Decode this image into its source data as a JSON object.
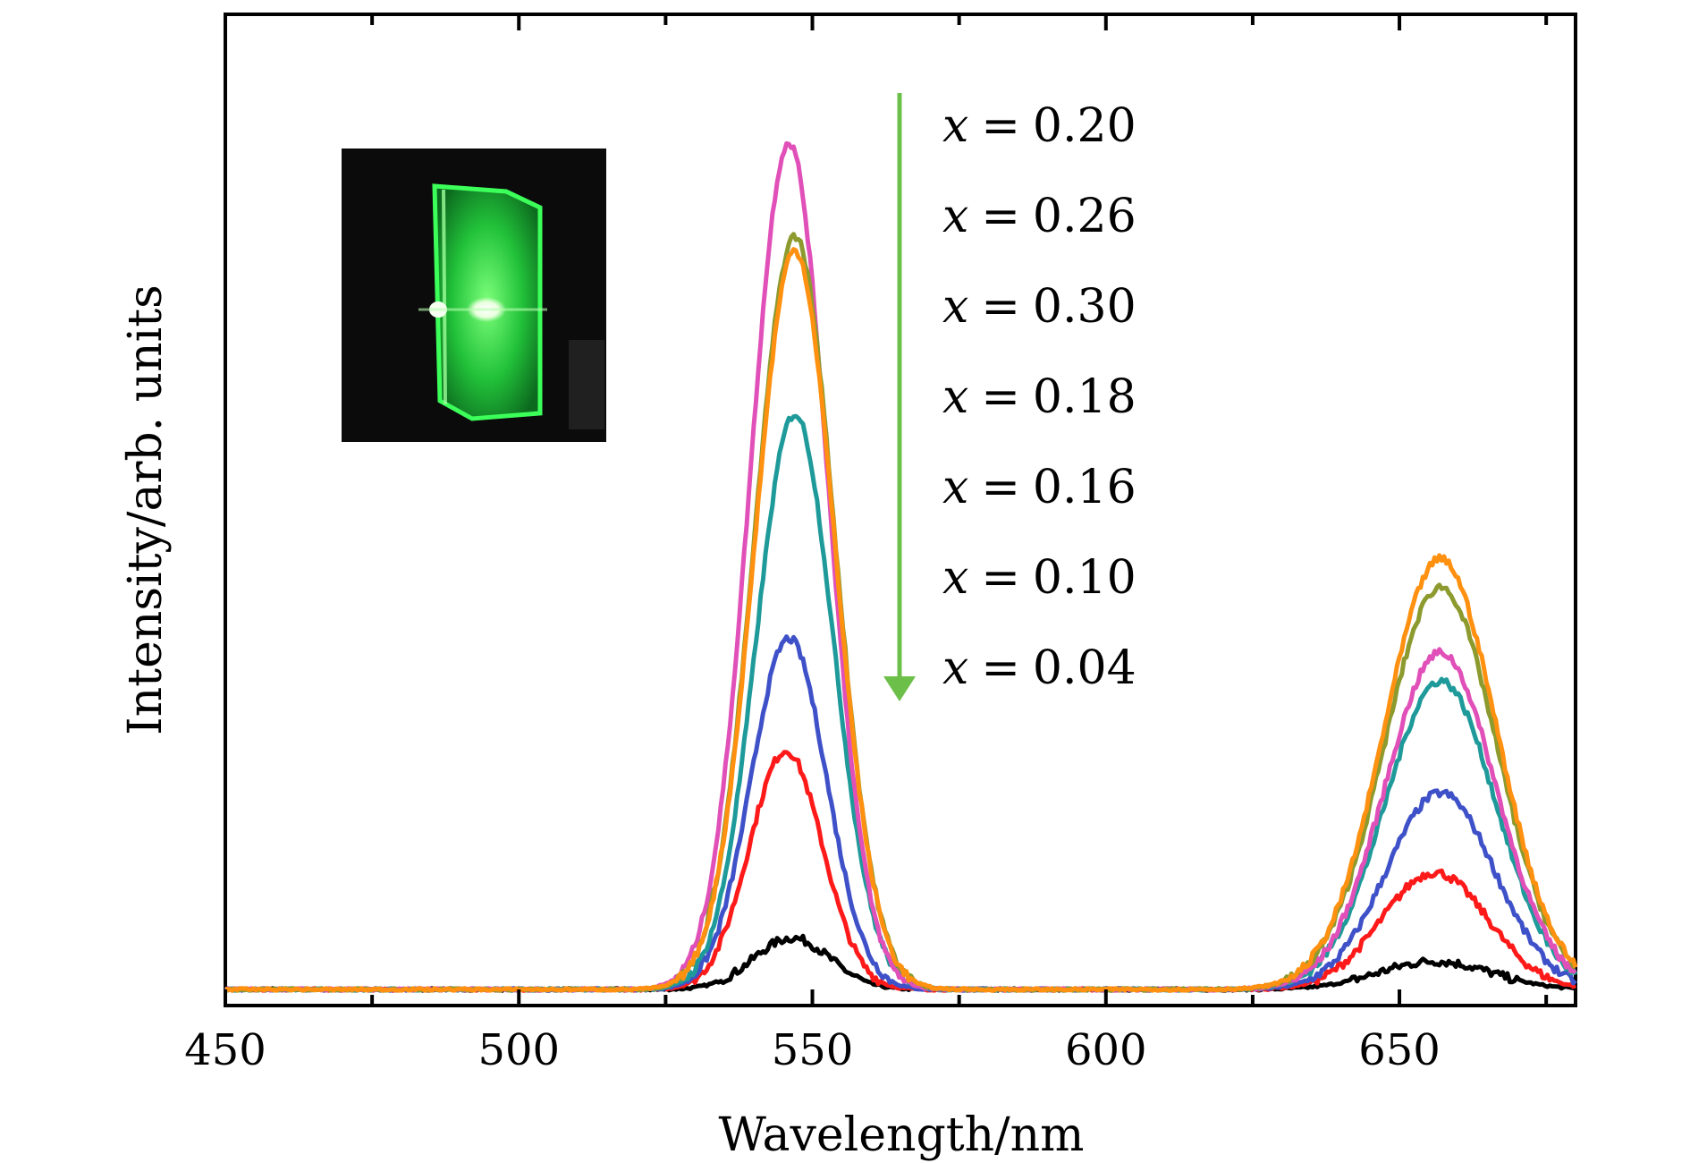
{
  "chart_data": {
    "type": "line",
    "title": "",
    "xlabel": "Wavelength/nm",
    "ylabel": "Intensity/arb. units",
    "xlim": [
      450,
      680
    ],
    "ylim": [
      0,
      1.0
    ],
    "x_ticks": [
      450,
      500,
      550,
      600,
      650
    ],
    "x_minor_ticks": [
      475,
      525,
      575,
      625,
      675
    ],
    "y_tick_labels_shown": false,
    "grid": false,
    "legend_position": "top-center",
    "legend_arrow_color": "#6cc04a",
    "legend_order": [
      "x = 0.20",
      "x = 0.26",
      "x = 0.30",
      "x = 0.18",
      "x = 0.16",
      "x = 0.10",
      "x = 0.04"
    ],
    "legend_entries": [
      {
        "var": "x",
        "eq": "=",
        "val": "0.20"
      },
      {
        "var": "x",
        "eq": "=",
        "val": "0.26"
      },
      {
        "var": "x",
        "eq": "=",
        "val": "0.30"
      },
      {
        "var": "x",
        "eq": "=",
        "val": "0.18"
      },
      {
        "var": "x",
        "eq": "=",
        "val": "0.16"
      },
      {
        "var": "x",
        "eq": "=",
        "val": "0.10"
      },
      {
        "var": "x",
        "eq": "=",
        "val": "0.04"
      }
    ],
    "inset": {
      "description": "photo of green luminescent glass sample",
      "glow_color": "#2ecc40"
    },
    "series": [
      {
        "name": "x = 0.04",
        "color": "#000000",
        "peak1": {
          "center": 546.5,
          "height": 0.055,
          "width": 6.5
        },
        "peak2": {
          "center": 656,
          "height": 0.03,
          "width": 9.5
        }
      },
      {
        "name": "x = 0.10",
        "color": "#ff1a1a",
        "peak1": {
          "center": 545.5,
          "height": 0.255,
          "width": 6.2
        },
        "peak2": {
          "center": 656,
          "height": 0.125,
          "width": 9.0
        }
      },
      {
        "name": "x = 0.16",
        "color": "#3f51c8",
        "peak1": {
          "center": 546,
          "height": 0.375,
          "width": 6.4
        },
        "peak2": {
          "center": 657,
          "height": 0.21,
          "width": 9.2
        }
      },
      {
        "name": "x = 0.18",
        "color": "#1f9a9a",
        "peak1": {
          "center": 547,
          "height": 0.615,
          "width": 6.6
        },
        "peak2": {
          "center": 657,
          "height": 0.33,
          "width": 9.4
        }
      },
      {
        "name": "x = 0.20",
        "color": "#e050b8",
        "peak1": {
          "center": 546,
          "height": 0.905,
          "width": 6.6
        },
        "peak2": {
          "center": 657,
          "height": 0.36,
          "width": 9.4
        }
      },
      {
        "name": "x = 0.26",
        "color": "#8c9a2e",
        "peak1": {
          "center": 547,
          "height": 0.805,
          "width": 6.8
        },
        "peak2": {
          "center": 657,
          "height": 0.43,
          "width": 9.6
        }
      },
      {
        "name": "x = 0.30",
        "color": "#ff9010",
        "peak1": {
          "center": 547,
          "height": 0.79,
          "width": 6.8
        },
        "peak2": {
          "center": 657,
          "height": 0.46,
          "width": 9.6
        }
      }
    ]
  }
}
